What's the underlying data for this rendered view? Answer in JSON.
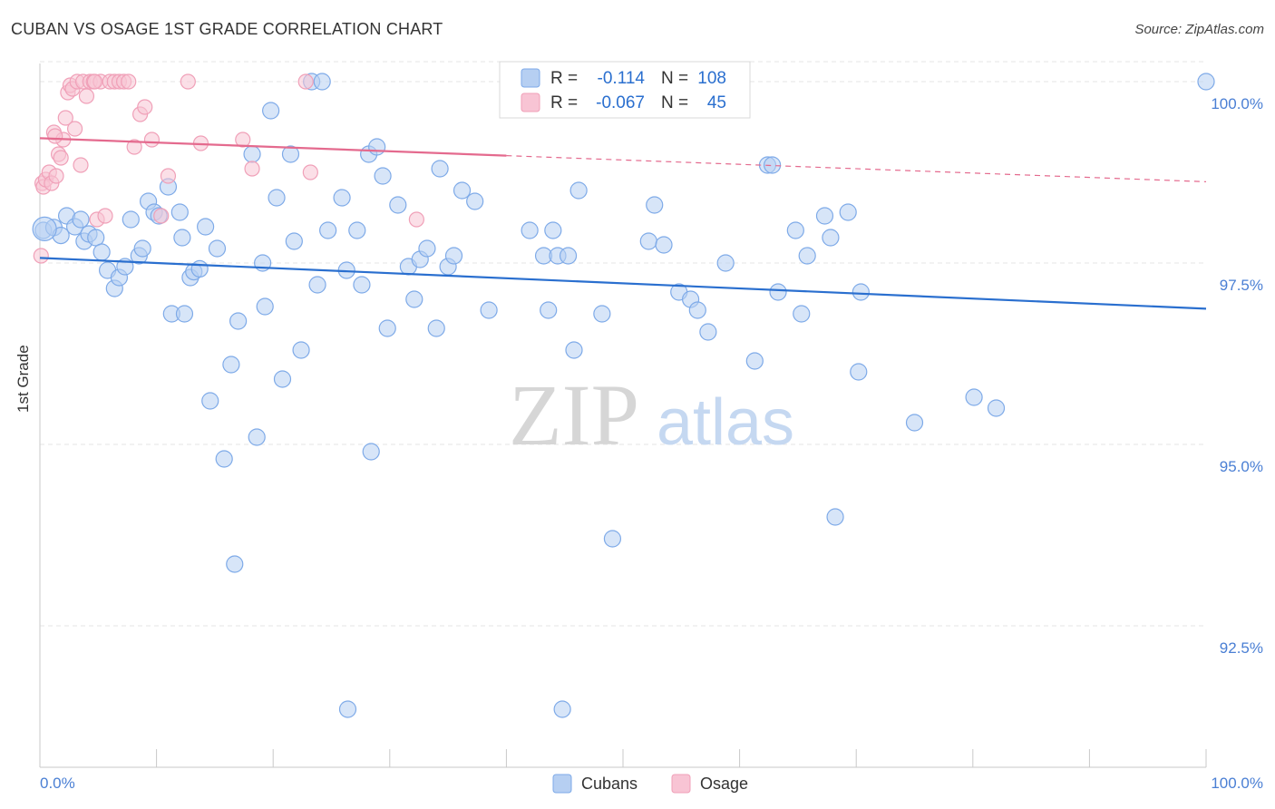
{
  "header": {
    "title": "CUBAN VS OSAGE 1ST GRADE CORRELATION CHART",
    "source": "Source: ZipAtlas.com"
  },
  "watermark": {
    "zip": "ZIP",
    "atlas": "atlas"
  },
  "colors": {
    "blue": "#7eaae8",
    "blue_fill": "#b6cff2",
    "blue_line": "#2a6fcf",
    "pink": "#f0a0b8",
    "pink_fill": "#f8c4d4",
    "pink_line": "#e46a8e",
    "tick_label": "#4a7fd4",
    "grid": "#e6e6e6"
  },
  "legend": {
    "rows": [
      {
        "r_label": "R =",
        "r_value": "-0.114",
        "n_label": "N =",
        "n_value": "108"
      },
      {
        "r_label": "R =",
        "r_value": "-0.067",
        "n_label": "N =",
        "n_value": "45"
      }
    ]
  },
  "chart_data": {
    "type": "scatter",
    "title": "CUBAN VS OSAGE 1ST GRADE CORRELATION CHART",
    "xlabel": "",
    "ylabel": "1st Grade",
    "xlim": [
      0,
      100
    ],
    "ylim": [
      90.55,
      100.25
    ],
    "x_tick_labels": [
      "0.0%",
      "100.0%"
    ],
    "y_ticks": [
      92.5,
      95.0,
      97.5,
      100.0
    ],
    "y_tick_labels": [
      "92.5%",
      "95.0%",
      "97.5%",
      "100.0%"
    ],
    "series": [
      {
        "name": "Cubans",
        "trend": {
          "x0": 0,
          "y0": 97.57,
          "x1": 100,
          "y1": 96.87,
          "dashed_from": null
        },
        "points": [
          [
            0.3,
            97.95
          ],
          [
            1.2,
            97.99
          ],
          [
            1.8,
            97.88
          ],
          [
            2.3,
            98.15
          ],
          [
            3.0,
            98.0
          ],
          [
            3.5,
            98.1
          ],
          [
            3.8,
            97.8
          ],
          [
            4.2,
            97.9
          ],
          [
            4.8,
            97.85
          ],
          [
            5.3,
            97.65
          ],
          [
            5.8,
            97.4
          ],
          [
            6.4,
            97.15
          ],
          [
            6.8,
            97.3
          ],
          [
            7.3,
            97.45
          ],
          [
            7.8,
            98.1
          ],
          [
            8.5,
            97.6
          ],
          [
            8.8,
            97.7
          ],
          [
            9.3,
            98.35
          ],
          [
            9.8,
            98.2
          ],
          [
            10.2,
            98.15
          ],
          [
            11.0,
            98.55
          ],
          [
            11.3,
            96.8
          ],
          [
            12.0,
            98.2
          ],
          [
            12.2,
            97.85
          ],
          [
            12.4,
            96.8
          ],
          [
            12.9,
            97.3
          ],
          [
            13.2,
            97.38
          ],
          [
            13.7,
            97.42
          ],
          [
            14.2,
            98.0
          ],
          [
            14.6,
            95.6
          ],
          [
            15.2,
            97.7
          ],
          [
            15.8,
            94.8
          ],
          [
            16.4,
            96.1
          ],
          [
            16.7,
            93.35
          ],
          [
            17.0,
            96.7
          ],
          [
            18.2,
            99.0
          ],
          [
            18.6,
            95.1
          ],
          [
            19.1,
            97.5
          ],
          [
            19.3,
            96.9
          ],
          [
            19.8,
            99.6
          ],
          [
            20.3,
            98.4
          ],
          [
            20.8,
            95.9
          ],
          [
            21.5,
            99.0
          ],
          [
            21.8,
            97.8
          ],
          [
            22.4,
            96.3
          ],
          [
            23.3,
            100.0
          ],
          [
            23.8,
            97.2
          ],
          [
            24.2,
            100.0
          ],
          [
            24.7,
            97.95
          ],
          [
            25.9,
            98.4
          ],
          [
            26.3,
            97.4
          ],
          [
            26.4,
            91.35
          ],
          [
            27.2,
            97.95
          ],
          [
            27.6,
            97.2
          ],
          [
            28.2,
            99.0
          ],
          [
            28.4,
            94.9
          ],
          [
            28.9,
            99.1
          ],
          [
            29.4,
            98.7
          ],
          [
            29.8,
            96.6
          ],
          [
            30.7,
            98.3
          ],
          [
            31.6,
            97.45
          ],
          [
            32.1,
            97.0
          ],
          [
            32.6,
            97.55
          ],
          [
            33.2,
            97.7
          ],
          [
            34.0,
            96.6
          ],
          [
            34.3,
            98.8
          ],
          [
            35.0,
            97.45
          ],
          [
            35.5,
            97.6
          ],
          [
            36.2,
            98.5
          ],
          [
            37.3,
            98.35
          ],
          [
            38.5,
            96.85
          ],
          [
            42.0,
            97.95
          ],
          [
            43.2,
            97.6
          ],
          [
            43.6,
            96.85
          ],
          [
            44.0,
            97.95
          ],
          [
            44.4,
            97.6
          ],
          [
            44.8,
            91.35
          ],
          [
            45.3,
            97.6
          ],
          [
            45.8,
            96.3
          ],
          [
            46.2,
            98.5
          ],
          [
            48.2,
            96.8
          ],
          [
            49.1,
            93.7
          ],
          [
            52.2,
            97.8
          ],
          [
            52.7,
            98.3
          ],
          [
            53.2,
            100.0
          ],
          [
            53.5,
            97.75
          ],
          [
            54.8,
            97.1
          ],
          [
            55.8,
            97.0
          ],
          [
            56.4,
            96.85
          ],
          [
            57.3,
            96.55
          ],
          [
            58.8,
            97.5
          ],
          [
            61.3,
            96.15
          ],
          [
            62.4,
            98.85
          ],
          [
            62.8,
            98.85
          ],
          [
            63.3,
            97.1
          ],
          [
            64.8,
            97.95
          ],
          [
            65.3,
            96.8
          ],
          [
            65.8,
            97.6
          ],
          [
            67.3,
            98.15
          ],
          [
            67.8,
            97.85
          ],
          [
            68.2,
            94.0
          ],
          [
            69.3,
            98.2
          ],
          [
            70.2,
            96.0
          ],
          [
            70.4,
            97.1
          ],
          [
            75.0,
            95.3
          ],
          [
            80.1,
            95.65
          ],
          [
            82.0,
            95.5
          ],
          [
            100.0,
            100.0
          ]
        ]
      },
      {
        "name": "Osage",
        "trend": {
          "x0": 0,
          "y0": 99.22,
          "x1": 100,
          "y1": 98.62,
          "dashed_from": 40
        },
        "points": [
          [
            0.2,
            98.6
          ],
          [
            0.3,
            98.55
          ],
          [
            0.5,
            98.65
          ],
          [
            0.8,
            98.75
          ],
          [
            1.0,
            98.6
          ],
          [
            1.2,
            99.3
          ],
          [
            1.4,
            98.7
          ],
          [
            1.6,
            99.0
          ],
          [
            1.8,
            98.95
          ],
          [
            2.0,
            99.2
          ],
          [
            2.2,
            99.5
          ],
          [
            2.4,
            99.85
          ],
          [
            2.6,
            99.95
          ],
          [
            2.8,
            99.9
          ],
          [
            3.0,
            99.35
          ],
          [
            3.2,
            100.0
          ],
          [
            3.5,
            98.85
          ],
          [
            3.7,
            100.0
          ],
          [
            4.0,
            99.8
          ],
          [
            4.3,
            100.0
          ],
          [
            4.6,
            100.0
          ],
          [
            4.9,
            98.1
          ],
          [
            5.2,
            100.0
          ],
          [
            5.6,
            98.15
          ],
          [
            6.0,
            100.0
          ],
          [
            6.4,
            100.0
          ],
          [
            6.8,
            100.0
          ],
          [
            7.2,
            100.0
          ],
          [
            7.6,
            100.0
          ],
          [
            8.1,
            99.1
          ],
          [
            8.6,
            99.55
          ],
          [
            9.0,
            99.65
          ],
          [
            9.6,
            99.2
          ],
          [
            10.4,
            98.15
          ],
          [
            11.0,
            98.7
          ],
          [
            12.7,
            100.0
          ],
          [
            13.8,
            99.15
          ],
          [
            17.4,
            99.2
          ],
          [
            18.2,
            98.8
          ],
          [
            22.8,
            100.0
          ],
          [
            23.2,
            98.75
          ],
          [
            32.3,
            98.1
          ],
          [
            0.1,
            97.6
          ],
          [
            1.3,
            99.25
          ],
          [
            4.7,
            100.0
          ]
        ]
      }
    ]
  }
}
